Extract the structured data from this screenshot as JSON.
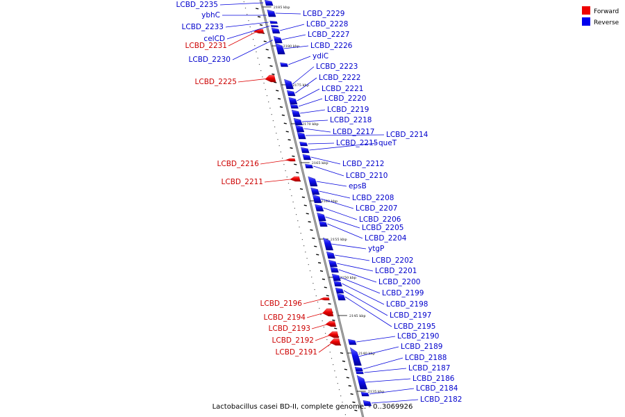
{
  "legend": {
    "forward_label": "Forward",
    "reverse_label": "Reverse",
    "forward_color": "#ee0000",
    "reverse_color": "#0000ee"
  },
  "caption": "Lactobacillus casei BD-II, complete genome. - 0..3069926",
  "kbp_labels": [
    "2185 kbp",
    "2180 kbp",
    "2175 kbp",
    "2170 kbp",
    "2165 kbp",
    "2160 kbp",
    "2155 kbp",
    "2150 kbp",
    "2145 kbp",
    "2140 kbp",
    "2135 kbp"
  ],
  "forward_genes": [
    "LCBD_2231",
    "LCBD_2225",
    "LCBD_2216",
    "LCBD_2211",
    "LCBD_2196",
    "LCBD_2194",
    "LCBD_2193",
    "LCBD_2192",
    "LCBD_2191"
  ],
  "reverse_genes": [
    "LCBD_2235",
    "ybhC",
    "LCBD_2233",
    "celCD",
    "LCBD_2230",
    "LCBD_2229",
    "LCBD_2228",
    "LCBD_2227",
    "LCBD_2226",
    "ydiC",
    "LCBD_2223",
    "LCBD_2222",
    "LCBD_2221",
    "LCBD_2220",
    "LCBD_2219",
    "LCBD_2218",
    "LCBD_2217",
    "LCBD_2214",
    "LCBD_2215",
    "queT",
    "LCBD_2212",
    "LCBD_2210",
    "epsB",
    "LCBD_2208",
    "LCBD_2207",
    "LCBD_2206",
    "LCBD_2205",
    "LCBD_2204",
    "ytgP",
    "LCBD_2202",
    "LCBD_2201",
    "LCBD_2200",
    "LCBD_2199",
    "LCBD_2198",
    "LCBD_2197",
    "LCBD_2195",
    "LCBD_2190",
    "LCBD_2189",
    "LCBD_2188",
    "LCBD_2187",
    "LCBD_2186",
    "LCBD_2184",
    "LCBD_2182"
  ]
}
